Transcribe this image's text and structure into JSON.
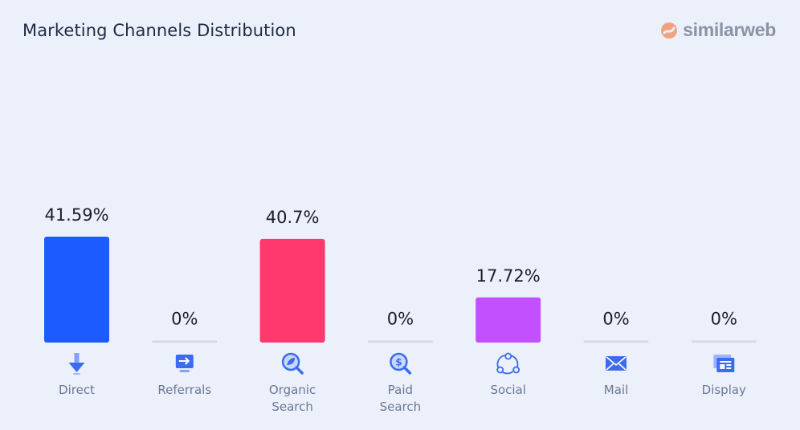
{
  "header": {
    "title": "Marketing Channels Distribution",
    "logo_text": "similarweb"
  },
  "colors": {
    "direct": "#1c5bff",
    "organic_search": "#ff386d",
    "social": "#c350ff",
    "zero_bar": "#d0d8e8",
    "icon_blue": "#3b6cf0"
  },
  "chart_data": {
    "type": "bar",
    "title": "Marketing Channels Distribution",
    "categories": [
      "Direct",
      "Referrals",
      "Organic\nSearch",
      "Paid\nSearch",
      "Social",
      "Mail",
      "Display"
    ],
    "values": [
      41.59,
      0,
      40.7,
      0,
      17.72,
      0,
      0
    ],
    "value_labels": [
      "41.59%",
      "0%",
      "40.7%",
      "0%",
      "17.72%",
      "0%",
      "0%"
    ],
    "icons": [
      "direct-arrow-icon",
      "referrals-monitor-icon",
      "organic-search-icon",
      "paid-search-icon",
      "social-share-icon",
      "mail-envelope-icon",
      "display-window-icon"
    ],
    "bar_colors": [
      "#1c5bff",
      "#d0d8e8",
      "#ff386d",
      "#d0d8e8",
      "#c350ff",
      "#d0d8e8",
      "#d0d8e8"
    ],
    "unit": "%",
    "ylim": [
      0,
      41.59
    ],
    "grid": false,
    "legend": "none"
  }
}
